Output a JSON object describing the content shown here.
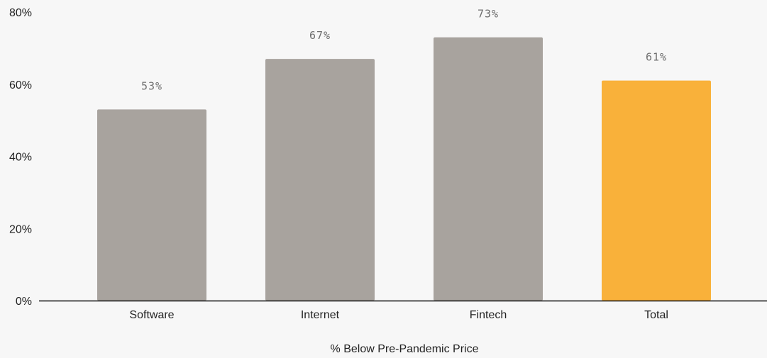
{
  "chart_data": {
    "type": "bar",
    "categories": [
      "Software",
      "Internet",
      "Fintech",
      "Total"
    ],
    "values": [
      53,
      67,
      73,
      61
    ],
    "data_labels": [
      "53%",
      "67%",
      "73%",
      "61%"
    ],
    "title": "",
    "xlabel": "% Below Pre-Pandemic Price",
    "ylabel": "",
    "ylim": [
      0,
      80
    ],
    "yticks": [
      0,
      20,
      40,
      60,
      80
    ],
    "ytick_labels": [
      "0%",
      "20%",
      "40%",
      "60%",
      "80%"
    ],
    "grid": false,
    "legend": "none",
    "colors": {
      "default_bar": "#a8a39e",
      "highlight_bar": "#f9b13a",
      "axis_line": "#111111",
      "background": "#f7f7f7"
    },
    "highlight_category": "Total"
  }
}
